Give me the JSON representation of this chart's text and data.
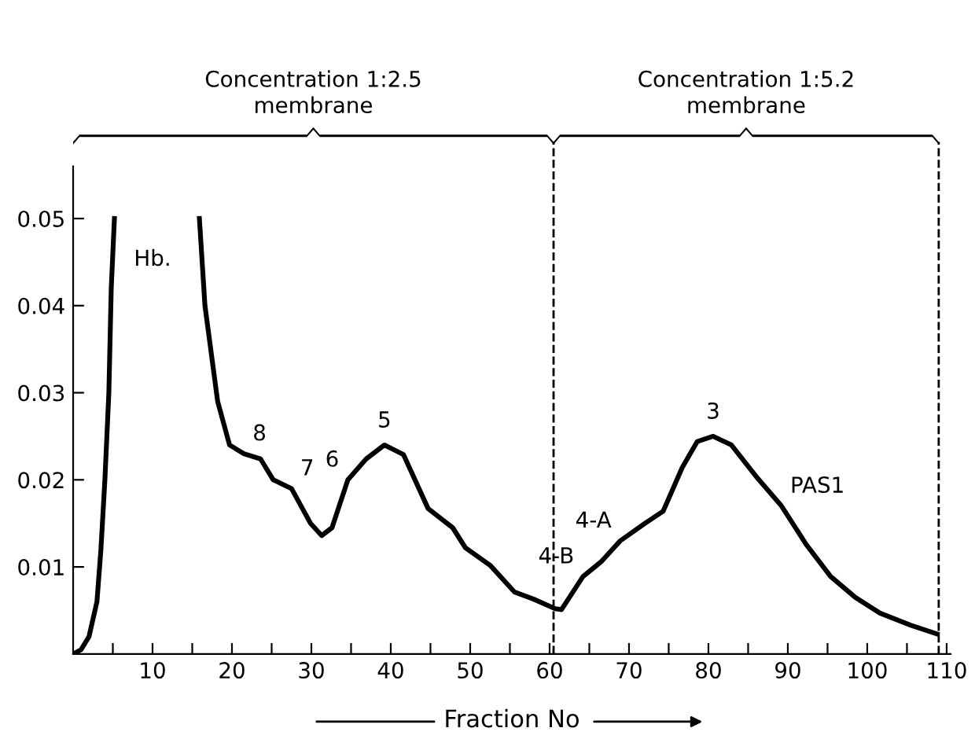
{
  "chart_data": {
    "type": "line",
    "xlabel": "Fraction No",
    "x": [
      0,
      1,
      2,
      3,
      3.5,
      4,
      4.5,
      4.8,
      5.2,
      10,
      15.9,
      16.6,
      18.2,
      19.7,
      21.5,
      23.6,
      25.2,
      27.5,
      29.9,
      31.3,
      32.6,
      34.6,
      36.9,
      39.2,
      41.6,
      44.7,
      47.8,
      49.4,
      52.5,
      55.6,
      58,
      60.7,
      61.5,
      64.2,
      66.5,
      68.9,
      72,
      74.3,
      76.7,
      78.6,
      80.6,
      82.9,
      86,
      89.2,
      92.3,
      95.4,
      98.5,
      101.6,
      105.5,
      108.8
    ],
    "series": [
      {
        "color": "#000000",
        "values": [
          0,
          0.0005,
          0.002,
          0.006,
          0.012,
          0.02,
          0.03,
          0.042,
          0.05,
          null,
          0.05,
          0.04,
          0.029,
          0.024,
          0.023,
          0.0224,
          0.02,
          0.019,
          0.015,
          0.0136,
          0.0145,
          0.02,
          0.0224,
          0.024,
          0.0229,
          0.0167,
          0.0145,
          0.0122,
          0.0102,
          0.0071,
          0.0063,
          0.0052,
          0.0051,
          0.0089,
          0.0106,
          0.013,
          0.015,
          0.0164,
          0.0214,
          0.0244,
          0.025,
          0.024,
          0.0204,
          0.017,
          0.0126,
          0.0089,
          0.0065,
          0.0047,
          0.0033,
          0.0023
        ]
      }
    ],
    "xlim": [
      0,
      110.5
    ],
    "ylim": [
      0,
      0.056
    ],
    "xticks": [
      {
        "value": 5,
        "label": null
      },
      10,
      {
        "value": 15,
        "label": null
      },
      20,
      {
        "value": 25,
        "label": null
      },
      30,
      {
        "value": 35,
        "label": null
      },
      40,
      {
        "value": 45,
        "label": null
      },
      50,
      {
        "value": 55,
        "label": null
      },
      60,
      {
        "value": 65,
        "label": null
      },
      70,
      {
        "value": 75,
        "label": null
      },
      80,
      {
        "value": 85,
        "label": null
      },
      90,
      {
        "value": 95,
        "label": null
      },
      100,
      {
        "value": 105,
        "label": null
      },
      110
    ],
    "yticks": [
      0.01,
      0.02,
      0.03,
      0.04,
      0.05
    ],
    "ref_lines": [
      {
        "axis": "x",
        "value": 60.5,
        "line_style": "dashed",
        "color": "#000000"
      },
      {
        "axis": "x",
        "value": 109,
        "line_style": "dashed",
        "color": "#000000"
      }
    ],
    "annotations": [
      "Hb.",
      {
        "text": "8",
        "x": 21.5,
        "y": 0.023
      },
      {
        "text": "7",
        "x": 27.5,
        "y": 0.019
      },
      {
        "text": "6",
        "x": 34.6,
        "y": 0.02
      },
      {
        "text": "5",
        "x": 39.2,
        "y": 0.024
      },
      {
        "text": "4-B",
        "x": 64.2,
        "y": 0.0089
      },
      {
        "text": "4-A",
        "x": 68.9,
        "y": 0.013
      },
      {
        "text": "3",
        "x": 80.6,
        "y": 0.025
      },
      {
        "text": "PAS1",
        "x": 89.2,
        "y": 0.017
      },
      "Concentration 1:2.5\nmembrane",
      "Concentration 1:5.2\nmembrane"
    ],
    "grid": false,
    "legend": false,
    "marker": "none",
    "line_style": "solid"
  }
}
